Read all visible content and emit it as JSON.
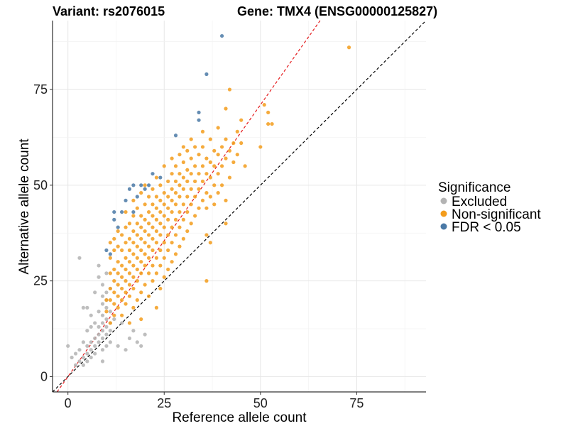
{
  "chart_data": {
    "type": "scatter",
    "title_left": "Variant: rs2076015",
    "title_right": "Gene: TMX4 (ENSG00000125827)",
    "xlabel": "Reference allele count",
    "ylabel": "Alternative allele count",
    "xlim": [
      -4,
      93
    ],
    "ylim": [
      -4,
      93
    ],
    "x_ticks": [
      0,
      25,
      50,
      75
    ],
    "y_ticks": [
      0,
      25,
      50,
      75
    ],
    "reference_lines": [
      {
        "name": "identity",
        "slope": 1,
        "intercept": 0,
        "color": "#000000",
        "style": "dashed"
      },
      {
        "name": "fitted",
        "slope": 1.42,
        "intercept": 0,
        "color": "#e41a1c",
        "style": "dashed"
      }
    ],
    "legend": {
      "title": "Significance",
      "entries": [
        {
          "label": "Excluded",
          "color": "#b3b3b3"
        },
        {
          "label": "Non-significant",
          "color": "#f39c1b"
        },
        {
          "label": "FDR < 0.05",
          "color": "#4a79a6"
        }
      ]
    },
    "series": [
      {
        "name": "Excluded",
        "color": "#b3b3b3",
        "points": [
          [
            0,
            8
          ],
          [
            1,
            5
          ],
          [
            2,
            3
          ],
          [
            2,
            6
          ],
          [
            3,
            4
          ],
          [
            3,
            7
          ],
          [
            3,
            31
          ],
          [
            4,
            5
          ],
          [
            4,
            3
          ],
          [
            4,
            9
          ],
          [
            4,
            18
          ],
          [
            5,
            4
          ],
          [
            5,
            6
          ],
          [
            5,
            8
          ],
          [
            5,
            12
          ],
          [
            5,
            18
          ],
          [
            6,
            5
          ],
          [
            6,
            7
          ],
          [
            6,
            9
          ],
          [
            6,
            13
          ],
          [
            6,
            16
          ],
          [
            7,
            6
          ],
          [
            7,
            8
          ],
          [
            7,
            10
          ],
          [
            7,
            14
          ],
          [
            7,
            22
          ],
          [
            8,
            9
          ],
          [
            8,
            11
          ],
          [
            8,
            13
          ],
          [
            8,
            17
          ],
          [
            8,
            26
          ],
          [
            8,
            29
          ],
          [
            9,
            4
          ],
          [
            9,
            7
          ],
          [
            9,
            10
          ],
          [
            9,
            12
          ],
          [
            9,
            14
          ],
          [
            9,
            16
          ],
          [
            9,
            19
          ],
          [
            9,
            21
          ],
          [
            9,
            24
          ],
          [
            10,
            8
          ],
          [
            10,
            11
          ],
          [
            10,
            13
          ],
          [
            10,
            15
          ],
          [
            10,
            18
          ],
          [
            10,
            20
          ],
          [
            10,
            22
          ],
          [
            10,
            27
          ],
          [
            11,
            9
          ],
          [
            11,
            12
          ],
          [
            11,
            14
          ],
          [
            11,
            17
          ],
          [
            11,
            23
          ],
          [
            12,
            15
          ],
          [
            13,
            8
          ],
          [
            14,
            14
          ],
          [
            15,
            7
          ],
          [
            16,
            10
          ],
          [
            17,
            12
          ],
          [
            18,
            9
          ],
          [
            19,
            8
          ],
          [
            20,
            11
          ]
        ]
      },
      {
        "name": "Non-significant",
        "color": "#f39c1b",
        "points": [
          [
            10,
            17
          ],
          [
            10,
            20
          ],
          [
            11,
            14
          ],
          [
            11,
            20
          ],
          [
            11,
            23
          ],
          [
            11,
            27
          ],
          [
            11,
            31
          ],
          [
            11,
            35
          ],
          [
            12,
            16
          ],
          [
            12,
            19
          ],
          [
            12,
            22
          ],
          [
            12,
            25
          ],
          [
            12,
            28
          ],
          [
            12,
            33
          ],
          [
            12,
            36
          ],
          [
            13,
            18
          ],
          [
            13,
            21
          ],
          [
            13,
            24
          ],
          [
            13,
            27
          ],
          [
            13,
            30
          ],
          [
            13,
            34
          ],
          [
            13,
            38
          ],
          [
            14,
            16
          ],
          [
            14,
            20
          ],
          [
            14,
            23
          ],
          [
            14,
            26
          ],
          [
            14,
            29
          ],
          [
            14,
            33
          ],
          [
            14,
            37
          ],
          [
            15,
            19
          ],
          [
            15,
            22
          ],
          [
            15,
            25
          ],
          [
            15,
            28
          ],
          [
            15,
            31
          ],
          [
            15,
            35
          ],
          [
            15,
            39
          ],
          [
            15,
            43
          ],
          [
            16,
            14
          ],
          [
            16,
            21
          ],
          [
            16,
            24
          ],
          [
            16,
            27
          ],
          [
            16,
            30
          ],
          [
            16,
            33
          ],
          [
            16,
            36
          ],
          [
            16,
            40
          ],
          [
            17,
            18
          ],
          [
            17,
            23
          ],
          [
            17,
            26
          ],
          [
            17,
            29
          ],
          [
            17,
            32
          ],
          [
            17,
            35
          ],
          [
            17,
            38
          ],
          [
            17,
            42
          ],
          [
            17,
            46
          ],
          [
            18,
            20
          ],
          [
            18,
            25
          ],
          [
            18,
            28
          ],
          [
            18,
            31
          ],
          [
            18,
            34
          ],
          [
            18,
            37
          ],
          [
            18,
            40
          ],
          [
            18,
            44
          ],
          [
            19,
            15
          ],
          [
            19,
            22
          ],
          [
            19,
            27
          ],
          [
            19,
            30
          ],
          [
            19,
            33
          ],
          [
            19,
            36
          ],
          [
            19,
            39
          ],
          [
            19,
            42
          ],
          [
            19,
            48
          ],
          [
            20,
            24
          ],
          [
            20,
            29
          ],
          [
            20,
            32
          ],
          [
            20,
            35
          ],
          [
            20,
            38
          ],
          [
            20,
            41
          ],
          [
            20,
            45
          ],
          [
            20,
            50
          ],
          [
            21,
            21
          ],
          [
            21,
            27
          ],
          [
            21,
            31
          ],
          [
            21,
            34
          ],
          [
            21,
            37
          ],
          [
            21,
            40
          ],
          [
            21,
            43
          ],
          [
            21,
            47
          ],
          [
            22,
            25
          ],
          [
            22,
            29
          ],
          [
            22,
            33
          ],
          [
            22,
            36
          ],
          [
            22,
            39
          ],
          [
            22,
            42
          ],
          [
            22,
            45
          ],
          [
            22,
            49
          ],
          [
            23,
            18
          ],
          [
            23,
            27
          ],
          [
            23,
            31
          ],
          [
            23,
            35
          ],
          [
            23,
            38
          ],
          [
            23,
            41
          ],
          [
            23,
            44
          ],
          [
            23,
            47
          ],
          [
            23,
            52
          ],
          [
            24,
            23
          ],
          [
            24,
            29
          ],
          [
            24,
            33
          ],
          [
            24,
            37
          ],
          [
            24,
            40
          ],
          [
            24,
            43
          ],
          [
            24,
            46
          ],
          [
            24,
            50
          ],
          [
            25,
            26
          ],
          [
            25,
            31
          ],
          [
            25,
            35
          ],
          [
            25,
            39
          ],
          [
            25,
            42
          ],
          [
            25,
            45
          ],
          [
            25,
            48
          ],
          [
            25,
            55
          ],
          [
            26,
            28
          ],
          [
            26,
            33
          ],
          [
            26,
            37
          ],
          [
            26,
            41
          ],
          [
            26,
            44
          ],
          [
            26,
            47
          ],
          [
            26,
            51
          ],
          [
            27,
            30
          ],
          [
            27,
            35
          ],
          [
            27,
            39
          ],
          [
            27,
            43
          ],
          [
            27,
            46
          ],
          [
            27,
            49
          ],
          [
            27,
            53
          ],
          [
            27,
            57
          ],
          [
            28,
            32
          ],
          [
            28,
            37
          ],
          [
            28,
            41
          ],
          [
            28,
            45
          ],
          [
            28,
            48
          ],
          [
            28,
            51
          ],
          [
            28,
            55
          ],
          [
            29,
            34
          ],
          [
            29,
            39
          ],
          [
            29,
            43
          ],
          [
            29,
            47
          ],
          [
            29,
            50
          ],
          [
            29,
            53
          ],
          [
            29,
            58
          ],
          [
            30,
            36
          ],
          [
            30,
            41
          ],
          [
            30,
            45
          ],
          [
            30,
            49
          ],
          [
            30,
            52
          ],
          [
            30,
            56
          ],
          [
            30,
            60
          ],
          [
            31,
            38
          ],
          [
            31,
            43
          ],
          [
            31,
            47
          ],
          [
            31,
            51
          ],
          [
            31,
            54
          ],
          [
            31,
            59
          ],
          [
            32,
            40
          ],
          [
            32,
            45
          ],
          [
            32,
            49
          ],
          [
            32,
            53
          ],
          [
            32,
            57
          ],
          [
            32,
            62
          ],
          [
            33,
            42
          ],
          [
            33,
            47
          ],
          [
            33,
            51
          ],
          [
            33,
            55
          ],
          [
            33,
            60
          ],
          [
            34,
            44
          ],
          [
            34,
            49
          ],
          [
            34,
            53
          ],
          [
            34,
            58
          ],
          [
            35,
            46
          ],
          [
            35,
            51
          ],
          [
            35,
            55
          ],
          [
            35,
            60
          ],
          [
            35,
            64
          ],
          [
            36,
            25
          ],
          [
            36,
            37
          ],
          [
            36,
            44
          ],
          [
            36,
            48
          ],
          [
            36,
            53
          ],
          [
            36,
            57
          ],
          [
            37,
            35
          ],
          [
            37,
            47
          ],
          [
            37,
            52
          ],
          [
            37,
            56
          ],
          [
            37,
            62
          ],
          [
            38,
            45
          ],
          [
            38,
            50
          ],
          [
            38,
            55
          ],
          [
            38,
            59
          ],
          [
            39,
            48
          ],
          [
            39,
            53
          ],
          [
            39,
            58
          ],
          [
            39,
            65
          ],
          [
            40,
            50
          ],
          [
            40,
            55
          ],
          [
            40,
            60
          ],
          [
            41,
            40
          ],
          [
            41,
            46
          ],
          [
            41,
            57
          ],
          [
            41,
            62
          ],
          [
            41,
            70
          ],
          [
            42,
            52
          ],
          [
            42,
            59
          ],
          [
            42,
            75
          ],
          [
            43,
            56
          ],
          [
            43,
            61
          ],
          [
            44,
            58
          ],
          [
            44,
            64
          ],
          [
            45,
            61
          ],
          [
            45,
            67
          ],
          [
            46,
            55
          ],
          [
            50,
            60
          ],
          [
            51,
            71
          ],
          [
            52,
            66
          ],
          [
            52,
            69
          ],
          [
            53,
            66
          ],
          [
            73,
            86
          ]
        ]
      },
      {
        "name": "FDR < 0.05",
        "color": "#4a79a6",
        "points": [
          [
            10,
            33
          ],
          [
            11,
            32
          ],
          [
            12,
            41
          ],
          [
            12,
            43
          ],
          [
            13,
            39
          ],
          [
            14,
            43
          ],
          [
            15,
            46
          ],
          [
            16,
            49
          ],
          [
            17,
            43
          ],
          [
            17,
            50
          ],
          [
            18,
            47
          ],
          [
            19,
            50
          ],
          [
            20,
            49
          ],
          [
            21,
            50
          ],
          [
            22,
            53
          ],
          [
            24,
            52
          ],
          [
            28,
            63
          ],
          [
            34,
            67
          ],
          [
            34,
            69
          ],
          [
            36,
            79
          ],
          [
            40,
            89
          ]
        ]
      }
    ]
  }
}
